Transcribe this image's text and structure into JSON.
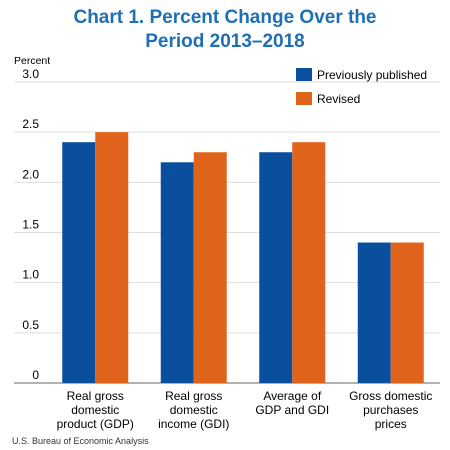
{
  "title_lines": [
    "Chart 1. Percent Change Over the",
    "Period 2013–2018"
  ],
  "source": "U.S. Bureau of Economic Analysis",
  "colors": {
    "previously_published": "#0a4f9e",
    "revised": "#e0631b",
    "title": "#1f6fb5"
  },
  "chart_data": {
    "type": "bar",
    "title": "Chart 1. Percent Change Over the Period 2013–2018",
    "ylabel": "Percent",
    "xlabel": "",
    "ylim": [
      0,
      3.0
    ],
    "yticks": [
      "0",
      "0.5",
      "1.0",
      "1.5",
      "2.0",
      "2.5",
      "3.0"
    ],
    "ytick_values": [
      0,
      0.5,
      1.0,
      1.5,
      2.0,
      2.5,
      3.0
    ],
    "grid": true,
    "legend_position": "top-right",
    "categories": [
      [
        "Real gross",
        "domestic",
        "product (GDP)"
      ],
      [
        "Real gross",
        "domestic",
        "income (GDI)"
      ],
      [
        "Average of",
        "GDP and GDI"
      ],
      [
        "Gross domestic",
        "purchases",
        "prices"
      ]
    ],
    "series": [
      {
        "name": "Previously published",
        "values": [
          2.4,
          2.2,
          2.3,
          1.4
        ]
      },
      {
        "name": "Revised",
        "values": [
          2.5,
          2.3,
          2.4,
          1.4
        ]
      }
    ]
  }
}
